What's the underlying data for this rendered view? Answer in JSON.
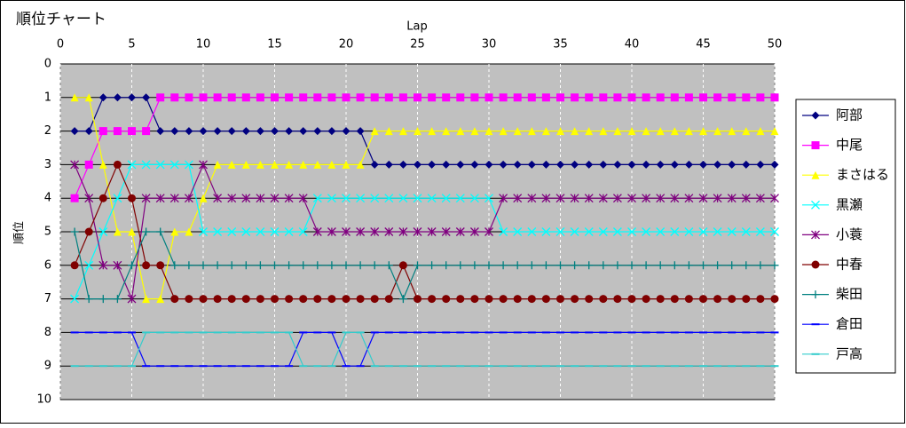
{
  "chart_data": {
    "type": "line",
    "title": "順位チャート",
    "x_label": "Lap",
    "y_label": "順位",
    "x": [
      1,
      2,
      3,
      4,
      5,
      6,
      7,
      8,
      9,
      10,
      11,
      12,
      13,
      14,
      15,
      16,
      17,
      18,
      19,
      20,
      21,
      22,
      23,
      24,
      25,
      26,
      27,
      28,
      29,
      30,
      31,
      32,
      33,
      34,
      35,
      36,
      37,
      38,
      39,
      40,
      41,
      42,
      43,
      44,
      45,
      46,
      47,
      48,
      49,
      50
    ],
    "xlim": [
      0,
      50
    ],
    "xticks": [
      0,
      5,
      10,
      15,
      20,
      25,
      30,
      35,
      40,
      45,
      50
    ],
    "ylim": [
      0,
      10
    ],
    "yticks": [
      0,
      1,
      2,
      3,
      4,
      5,
      6,
      7,
      8,
      9,
      10
    ],
    "y_inverted": true,
    "x_axis_position": "top",
    "grid": true,
    "legend": "right",
    "series": [
      {
        "name": "阿部",
        "color": "#000080",
        "marker": "diamond",
        "values": [
          2,
          2,
          1,
          1,
          1,
          1,
          2,
          2,
          2,
          2,
          2,
          2,
          2,
          2,
          2,
          2,
          2,
          2,
          2,
          2,
          2,
          3,
          3,
          3,
          3,
          3,
          3,
          3,
          3,
          3,
          3,
          3,
          3,
          3,
          3,
          3,
          3,
          3,
          3,
          3,
          3,
          3,
          3,
          3,
          3,
          3,
          3,
          3,
          3,
          3
        ]
      },
      {
        "name": "中尾",
        "color": "#FF00FF",
        "marker": "square",
        "values": [
          4,
          3,
          2,
          2,
          2,
          2,
          1,
          1,
          1,
          1,
          1,
          1,
          1,
          1,
          1,
          1,
          1,
          1,
          1,
          1,
          1,
          1,
          1,
          1,
          1,
          1,
          1,
          1,
          1,
          1,
          1,
          1,
          1,
          1,
          1,
          1,
          1,
          1,
          1,
          1,
          1,
          1,
          1,
          1,
          1,
          1,
          1,
          1,
          1,
          1
        ]
      },
      {
        "name": "まさはる",
        "color": "#FFFF00",
        "marker": "triangle",
        "values": [
          1,
          1,
          3,
          5,
          5,
          7,
          7,
          5,
          5,
          4,
          3,
          3,
          3,
          3,
          3,
          3,
          3,
          3,
          3,
          3,
          3,
          2,
          2,
          2,
          2,
          2,
          2,
          2,
          2,
          2,
          2,
          2,
          2,
          2,
          2,
          2,
          2,
          2,
          2,
          2,
          2,
          2,
          2,
          2,
          2,
          2,
          2,
          2,
          2,
          2
        ]
      },
      {
        "name": "黒瀬",
        "color": "#00FFFF",
        "marker": "x",
        "values": [
          7,
          6,
          5,
          4,
          3,
          3,
          3,
          3,
          3,
          5,
          5,
          5,
          5,
          5,
          5,
          5,
          5,
          4,
          4,
          4,
          4,
          4,
          4,
          4,
          4,
          4,
          4,
          4,
          4,
          4,
          5,
          5,
          5,
          5,
          5,
          5,
          5,
          5,
          5,
          5,
          5,
          5,
          5,
          5,
          5,
          5,
          5,
          5,
          5,
          5
        ]
      },
      {
        "name": "小蓑",
        "color": "#800080",
        "marker": "asterisk",
        "values": [
          3,
          4,
          6,
          6,
          7,
          4,
          4,
          4,
          4,
          3,
          4,
          4,
          4,
          4,
          4,
          4,
          4,
          5,
          5,
          5,
          5,
          5,
          5,
          5,
          5,
          5,
          5,
          5,
          5,
          5,
          4,
          4,
          4,
          4,
          4,
          4,
          4,
          4,
          4,
          4,
          4,
          4,
          4,
          4,
          4,
          4,
          4,
          4,
          4,
          4
        ]
      },
      {
        "name": "中春",
        "color": "#800000",
        "marker": "circle",
        "values": [
          6,
          5,
          4,
          3,
          4,
          6,
          6,
          7,
          7,
          7,
          7,
          7,
          7,
          7,
          7,
          7,
          7,
          7,
          7,
          7,
          7,
          7,
          7,
          6,
          7,
          7,
          7,
          7,
          7,
          7,
          7,
          7,
          7,
          7,
          7,
          7,
          7,
          7,
          7,
          7,
          7,
          7,
          7,
          7,
          7,
          7,
          7,
          7,
          7,
          7
        ]
      },
      {
        "name": "柴田",
        "color": "#008080",
        "marker": "plus",
        "values": [
          5,
          7,
          7,
          7,
          6,
          5,
          5,
          6,
          6,
          6,
          6,
          6,
          6,
          6,
          6,
          6,
          6,
          6,
          6,
          6,
          6,
          6,
          6,
          7,
          6,
          6,
          6,
          6,
          6,
          6,
          6,
          6,
          6,
          6,
          6,
          6,
          6,
          6,
          6,
          6,
          6,
          6,
          6,
          6,
          6,
          6,
          6,
          6,
          6,
          6
        ]
      },
      {
        "name": "倉田",
        "color": "#0000FF",
        "marker": "dash",
        "values": [
          8,
          8,
          8,
          8,
          8,
          9,
          9,
          9,
          9,
          9,
          9,
          9,
          9,
          9,
          9,
          9,
          8,
          8,
          8,
          9,
          9,
          8,
          8,
          8,
          8,
          8,
          8,
          8,
          8,
          8,
          8,
          8,
          8,
          8,
          8,
          8,
          8,
          8,
          8,
          8,
          8,
          8,
          8,
          8,
          8,
          8,
          8,
          8,
          8,
          8
        ]
      },
      {
        "name": "戸高",
        "color": "#33CCCC",
        "marker": "dash",
        "values": [
          9,
          9,
          9,
          9,
          9,
          8,
          8,
          8,
          8,
          8,
          8,
          8,
          8,
          8,
          8,
          8,
          9,
          9,
          9,
          8,
          8,
          9,
          9,
          9,
          9,
          9,
          9,
          9,
          9,
          9,
          9,
          9,
          9,
          9,
          9,
          9,
          9,
          9,
          9,
          9,
          9,
          9,
          9,
          9,
          9,
          9,
          9,
          9,
          9,
          9
        ]
      }
    ]
  }
}
